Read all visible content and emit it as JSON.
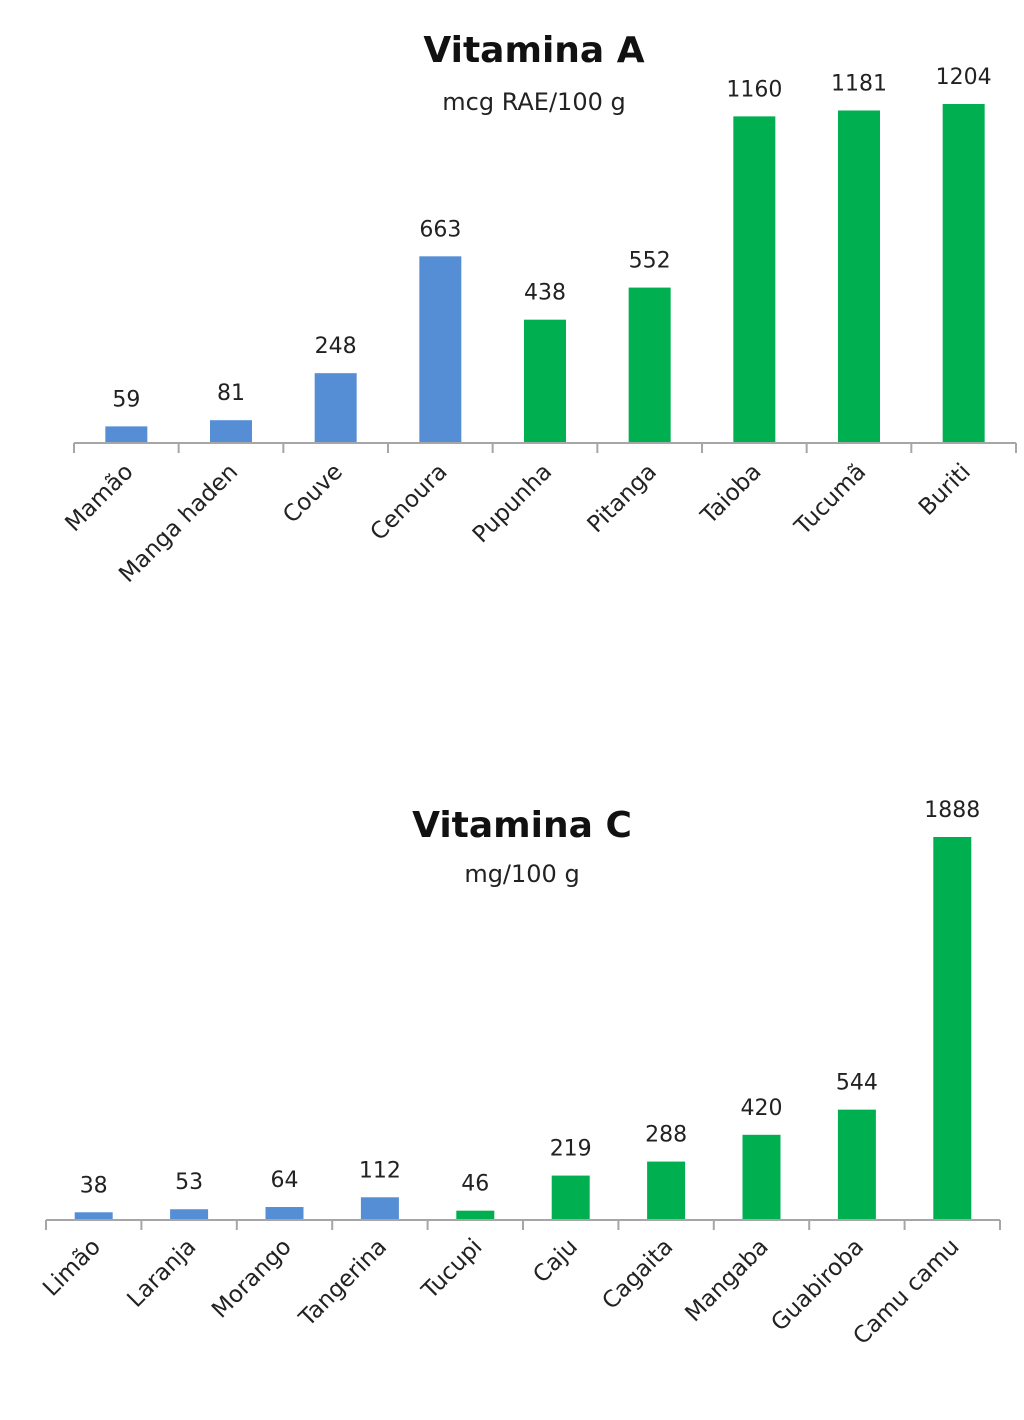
{
  "chart_data": [
    {
      "type": "bar",
      "title": "Vitamina A",
      "subtitle": "mcg RAE/100 g",
      "xlabel": "",
      "ylabel": "",
      "ylim": [
        0,
        1204
      ],
      "grid": false,
      "legend": "none",
      "categories": [
        "Mamão",
        "Manga haden",
        "Couve",
        "Cenoura",
        "Pupunha",
        "Pitanga",
        "Taioba",
        "Tucumã",
        "Buriti"
      ],
      "values": [
        59,
        81,
        248,
        663,
        438,
        552,
        1160,
        1181,
        1204
      ],
      "colors": [
        "#558ed5",
        "#558ed5",
        "#558ed5",
        "#558ed5",
        "#00b050",
        "#00b050",
        "#00b050",
        "#00b050",
        "#00b050"
      ],
      "data_labels": [
        "59",
        "81",
        "248",
        "663",
        "438",
        "552",
        "1160",
        "1181",
        "1204"
      ]
    },
    {
      "type": "bar",
      "title": "Vitamina C",
      "subtitle": "mg/100 g",
      "xlabel": "",
      "ylabel": "",
      "ylim": [
        0,
        1888
      ],
      "grid": false,
      "legend": "none",
      "categories": [
        "Limão",
        "Laranja",
        "Morango",
        "Tangerina",
        "Tucupi",
        "Caju",
        "Cagaita",
        "Mangaba",
        "Guabiroba",
        "Camu camu"
      ],
      "values": [
        38,
        53,
        64,
        112,
        46,
        219,
        288,
        420,
        544,
        1888
      ],
      "colors": [
        "#558ed5",
        "#558ed5",
        "#558ed5",
        "#558ed5",
        "#00b050",
        "#00b050",
        "#00b050",
        "#00b050",
        "#00b050",
        "#00b050"
      ],
      "data_labels": [
        "38",
        "53",
        "64",
        "112",
        "46",
        "219",
        "288",
        "420",
        "544",
        "1888"
      ]
    }
  ]
}
